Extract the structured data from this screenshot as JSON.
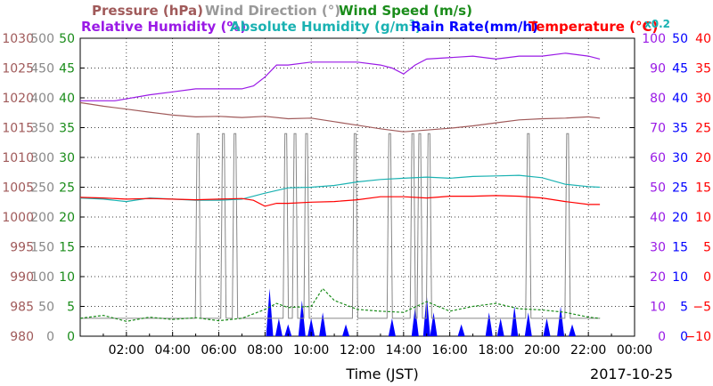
{
  "chart_data": {
    "type": "line",
    "legend": {
      "row1": [
        {
          "name": "Pressure (hPa)",
          "color": "#a05a5a"
        },
        {
          "name": "Wind Direction (°)",
          "color": "#999999"
        },
        {
          "name": "Wind Speed (m/s)",
          "color": "#1a8c1a"
        }
      ],
      "row2": [
        {
          "name": "Relative Humidity (%)",
          "color": "#9a1ae6"
        },
        {
          "name": "Absolute Humidity (g/m",
          "sup": "3",
          "tail": ")",
          "color": "#1ab2b2"
        },
        {
          "name": "Rain Rate(mm/h)",
          "color": "#0000ff"
        },
        {
          "name": "Temperature (°C)",
          "color": "#ff0000"
        }
      ],
      "scale_note": "x0.2"
    },
    "xlabel": "Time (JST)",
    "date": "2017-10-25",
    "x_ticks": [
      "02:00",
      "04:00",
      "06:00",
      "08:00",
      "10:00",
      "12:00",
      "14:00",
      "16:00",
      "18:00",
      "20:00",
      "22:00",
      "00:00"
    ],
    "xlim_hours": [
      0,
      24
    ],
    "axes": {
      "pressure": {
        "ticks": [
          "1030",
          "1025",
          "1020",
          "1015",
          "1010",
          "1005",
          "1000",
          "995",
          "990",
          "985",
          "980"
        ],
        "range": [
          980,
          1030
        ],
        "color": "#a05a5a"
      },
      "wind_direction": {
        "ticks": [
          "500",
          "450",
          "400",
          "350",
          "300",
          "250",
          "200",
          "150",
          "100",
          "50",
          "0"
        ],
        "range": [
          0,
          500
        ],
        "color": "#888888"
      },
      "wind_speed": {
        "ticks": [
          "50",
          "45",
          "40",
          "35",
          "30",
          "25",
          "20",
          "15",
          "10",
          "5",
          "0"
        ],
        "range": [
          0,
          50
        ],
        "color": "#1a8c1a"
      },
      "relative_humidity": {
        "ticks": [
          "100",
          "90",
          "80",
          "70",
          "60",
          "50",
          "40",
          "30",
          "20",
          "10",
          "0"
        ],
        "range": [
          0,
          100
        ],
        "color": "#9a1ae6"
      },
      "rain_rate": {
        "ticks": [
          "50",
          "45",
          "40",
          "35",
          "30",
          "25",
          "20",
          "15",
          "10",
          "5",
          "0"
        ],
        "range": [
          0,
          50
        ],
        "color": "#0000ff"
      },
      "temperature": {
        "ticks": [
          "40",
          "35",
          "30",
          "25",
          "20",
          "15",
          "10",
          "5",
          "0",
          "−5",
          "−10"
        ],
        "range": [
          -10,
          40
        ],
        "color": "#ff0000"
      }
    },
    "grid": true,
    "series": [
      {
        "name": "Relative Humidity (%)",
        "color": "#9a1ae6",
        "axis": "relative_humidity",
        "x": [
          0,
          1.5,
          3,
          4,
          5,
          7,
          7.5,
          8,
          8.5,
          9,
          10,
          12,
          13,
          13.5,
          14,
          14.5,
          15,
          17,
          18,
          19,
          20,
          21,
          22,
          22.5
        ],
        "y": [
          79,
          79,
          81,
          82,
          83,
          83,
          84,
          87,
          91,
          91,
          92,
          92,
          91,
          90,
          88,
          91,
          93,
          94,
          93,
          94,
          94,
          95,
          94,
          93
        ]
      },
      {
        "name": "Pressure (hPa)",
        "color": "#a05a5a",
        "axis": "pressure",
        "x": [
          0,
          1,
          2,
          3,
          4,
          5,
          6,
          7,
          8,
          9,
          10,
          11,
          12,
          13,
          14,
          15,
          16,
          17,
          18,
          19,
          20,
          21,
          22,
          22.5
        ],
        "y": [
          1019.2,
          1018.6,
          1018.1,
          1017.6,
          1017.1,
          1016.8,
          1016.9,
          1016.7,
          1016.9,
          1016.5,
          1016.6,
          1016.0,
          1015.4,
          1014.8,
          1014.3,
          1014.6,
          1014.9,
          1015.3,
          1015.8,
          1016.3,
          1016.5,
          1016.6,
          1016.8,
          1016.6
        ]
      },
      {
        "name": "Absolute Humidity (g/m3) x0.2",
        "color": "#1ab2b2",
        "axis": "wind_speed",
        "x": [
          0,
          1,
          2,
          3,
          4,
          5,
          6,
          7,
          8,
          9,
          10,
          11,
          12,
          13,
          14,
          15,
          16,
          17,
          18,
          19,
          20,
          21,
          22,
          22.5
        ],
        "y": [
          23.2,
          23.0,
          22.6,
          23.2,
          23.0,
          22.8,
          22.8,
          23.0,
          24.0,
          24.9,
          25.0,
          25.3,
          25.9,
          26.3,
          26.5,
          26.7,
          26.5,
          26.8,
          26.9,
          27.0,
          26.6,
          25.5,
          25.1,
          25.0
        ]
      },
      {
        "name": "Temperature (°C)",
        "color": "#ff0000",
        "axis": "temperature",
        "x": [
          0,
          1,
          2,
          3,
          4,
          5,
          6,
          7,
          7.5,
          8,
          8.5,
          9,
          10,
          11,
          12,
          13,
          14,
          15,
          16,
          17,
          18,
          19,
          20,
          21,
          22,
          22.5
        ],
        "y": [
          13.3,
          13.2,
          13.0,
          13.1,
          13.0,
          12.9,
          13.0,
          13.1,
          12.8,
          11.8,
          12.3,
          12.3,
          12.5,
          12.6,
          12.9,
          13.4,
          13.4,
          13.2,
          13.5,
          13.5,
          13.6,
          13.5,
          13.2,
          12.6,
          12.1,
          12.1
        ]
      },
      {
        "name": "Wind Direction (°)",
        "color": "#888888",
        "axis": "wind_direction",
        "spikes_hours": [
          5.1,
          6.2,
          6.7,
          8.9,
          9.3,
          9.8,
          11.9,
          13.4,
          14.4,
          14.7,
          15.1,
          19.4,
          21.1
        ],
        "spike_peak": 340,
        "baseline": 30
      },
      {
        "name": "Wind Speed (m/s)",
        "color": "#1a8c1a",
        "axis": "wind_speed",
        "x": [
          0,
          1,
          2,
          3,
          4,
          5,
          6,
          7,
          8,
          8.5,
          9,
          10,
          10.5,
          11,
          12,
          13,
          14,
          15,
          16,
          17,
          18,
          19,
          20,
          21,
          22,
          22.5
        ],
        "y": [
          3,
          3.5,
          2.5,
          3.2,
          2.8,
          3.1,
          2.6,
          3.0,
          4.5,
          5.5,
          4.8,
          5.0,
          8.0,
          6.0,
          4.5,
          4.2,
          4.0,
          5.8,
          4.2,
          5.0,
          5.5,
          4.6,
          4.4,
          4.0,
          3.2,
          3.0
        ]
      },
      {
        "name": "Rain Rate(mm/h)",
        "color": "#0000ff",
        "axis": "rain_rate",
        "x": [
          8.2,
          8.6,
          9.0,
          9.6,
          10.0,
          10.5,
          11.5,
          13.5,
          14.5,
          15.0,
          15.3,
          16.5,
          17.7,
          18.2,
          18.8,
          19.4,
          20.2,
          20.8,
          21.3
        ],
        "y": [
          8,
          3,
          2,
          6,
          3,
          4,
          2,
          3,
          5,
          7,
          4,
          2,
          4,
          3,
          5,
          4,
          3,
          5,
          2
        ]
      }
    ]
  }
}
